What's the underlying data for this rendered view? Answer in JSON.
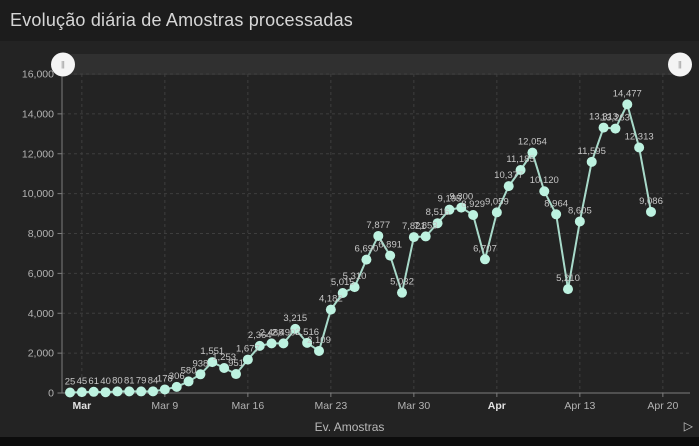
{
  "title": "Evolução diária de Amostras processadas",
  "legend": {
    "label": "Ev. Amostras"
  },
  "icons": {
    "legend_next": "▷",
    "slider_grip": "‖"
  },
  "colors": {
    "title_bg": "#1c1c1c",
    "panel_bg": "#232323",
    "bottom_bar": "#0c0c0c",
    "line": "#b7eedd",
    "dot": "#bdf2e0",
    "grid": "#3e3e3e",
    "axis": "#7d7d7d",
    "point_label": "#c6c6c6",
    "tick_label": "#b3b3b3",
    "tick_label_bold": "#e2e2e2",
    "slider_track": "#303030",
    "slider_handle": "#f4f4f4",
    "slider_grip": "#9a9a9a"
  },
  "chart_data": {
    "type": "line",
    "title": "Evolução diária de Amostras processadas",
    "series_name": "Ev. Amostras",
    "values": [
      25,
      45,
      61,
      40,
      80,
      81,
      79,
      84,
      178,
      306,
      580,
      938,
      1551,
      1253,
      951,
      1677,
      2364,
      2488,
      2490,
      3215,
      2516,
      2109,
      4182,
      5015,
      5310,
      6690,
      7877,
      6891,
      5032,
      7821,
      7853,
      8516,
      9195,
      9300,
      8929,
      6707,
      9059,
      10377,
      11185,
      12054,
      10120,
      8964,
      5210,
      8605,
      11595,
      13313,
      13263,
      14477,
      12313,
      9086
    ],
    "point_labels": [
      "25",
      "45",
      "61",
      "40",
      "80",
      "81",
      "79",
      "84",
      "178",
      "306",
      "580",
      "938",
      "1,551",
      "1,253",
      "951",
      "1,677",
      "2,364",
      "2,488",
      "2,490",
      "3,215",
      "2,516",
      "2,109",
      "4,182",
      "5,015",
      "5,310",
      "6,690",
      "7,877",
      "6,891",
      "5,032",
      "7,821",
      "7,853",
      "8,516",
      "9,195",
      "9,300",
      "8,929",
      "6,707",
      "9,059",
      "10,377",
      "11,185",
      "12,054",
      "10,120",
      "8,964",
      "5,210",
      "8,605",
      "11,595",
      "13,313",
      "13,263",
      "14,477",
      "12,313",
      "9,086"
    ],
    "x_axis_ticks": [
      {
        "label": "Mar",
        "bold": true,
        "day_index": 1
      },
      {
        "label": "Mar 9",
        "bold": false,
        "day_index": 8
      },
      {
        "label": "Mar 16",
        "bold": false,
        "day_index": 15
      },
      {
        "label": "Mar 23",
        "bold": false,
        "day_index": 22
      },
      {
        "label": "Mar 30",
        "bold": false,
        "day_index": 29
      },
      {
        "label": "Apr",
        "bold": true,
        "day_index": 36
      },
      {
        "label": "Apr 13",
        "bold": false,
        "day_index": 43
      },
      {
        "label": "Apr 20",
        "bold": false,
        "day_index": 50
      }
    ],
    "y_axis_ticks": [
      "0",
      "2,000",
      "4,000",
      "6,000",
      "8,000",
      "10,000",
      "12,000",
      "14,000",
      "16,000"
    ],
    "ylim": [
      0,
      16000
    ],
    "grid": "dashed",
    "legend_position": "bottom"
  }
}
